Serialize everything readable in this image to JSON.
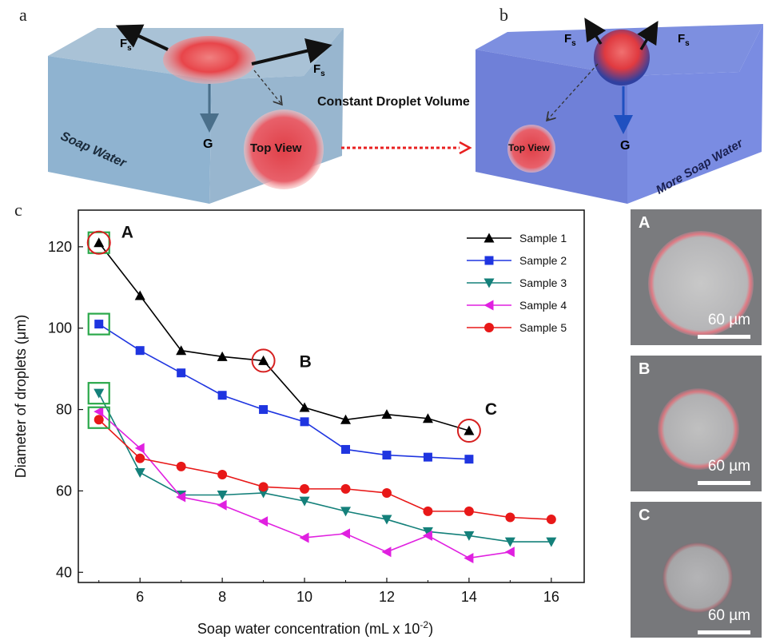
{
  "figure": {
    "panel_a": {
      "letter": "a",
      "force_label_1": "F",
      "force_sub_1": "s",
      "force_label_2": "F",
      "force_sub_2": "s",
      "gravity_label": "G",
      "liquid_label": "Soap Water",
      "top_view_label": "Top View"
    },
    "center_label": "Constant Droplet Volume",
    "panel_b": {
      "letter": "b",
      "force_label_1": "F",
      "force_sub_1": "s",
      "force_label_2": "F",
      "force_sub_2": "s",
      "gravity_label": "G",
      "liquid_label": "More Soap Water",
      "top_view_label": "Top View"
    },
    "panel_c_letter": "c",
    "micrographs": [
      {
        "label": "A",
        "scale_bar": "60 µm"
      },
      {
        "label": "B",
        "scale_bar": "60 µm"
      },
      {
        "label": "C",
        "scale_bar": "60 µm"
      }
    ],
    "colors": {
      "droplet_red": "#e8454a",
      "water_blue_a": "#8fb3d0",
      "water_blue_b": "#6f84dd",
      "highlight_green": "#2aa84a",
      "highlight_red": "#d62020"
    }
  },
  "chart_data": {
    "type": "line",
    "xlabel": "Soap water concentration (mL x 10",
    "xlabel_sup": "-2",
    "xlabel_end": ")",
    "ylabel": "Diameter of droplets (μm)",
    "xlim": [
      4.5,
      16.8
    ],
    "ylim": [
      37.5,
      129
    ],
    "xticks": [
      6,
      8,
      10,
      12,
      14,
      16
    ],
    "yticks": [
      40,
      60,
      80,
      100,
      120
    ],
    "legend_position": "top-right",
    "series": [
      {
        "name": "Sample 1",
        "color": "#000000",
        "marker": "triangle-up",
        "x": [
          5,
          6,
          7,
          8,
          9,
          10,
          11,
          12,
          13,
          14
        ],
        "y": [
          121,
          108,
          94.5,
          93,
          92,
          80.5,
          77.5,
          78.8,
          77.8,
          74.8
        ]
      },
      {
        "name": "Sample 2",
        "color": "#1f35e0",
        "marker": "square",
        "x": [
          5,
          6,
          7,
          8,
          9,
          10,
          11,
          12,
          13,
          14
        ],
        "y": [
          101,
          94.5,
          89,
          83.5,
          80,
          77,
          70.2,
          68.8,
          68.3,
          67.8
        ]
      },
      {
        "name": "Sample 3",
        "color": "#14807a",
        "marker": "triangle-down",
        "x": [
          5,
          6,
          7,
          8,
          9,
          10,
          11,
          12,
          13,
          14,
          15,
          16
        ],
        "y": [
          84,
          64.5,
          59,
          59,
          59.5,
          57.5,
          55,
          53,
          50,
          49,
          47.5,
          47.5
        ]
      },
      {
        "name": "Sample 4",
        "color": "#e020e0",
        "marker": "triangle-left",
        "x": [
          5,
          6,
          7,
          8,
          9,
          10,
          11,
          12,
          13,
          14,
          15
        ],
        "y": [
          79.5,
          70.5,
          58.5,
          56.5,
          52.5,
          48.5,
          49.5,
          45,
          49,
          43.5,
          45
        ]
      },
      {
        "name": "Sample 5",
        "color": "#e81818",
        "marker": "circle",
        "x": [
          5,
          6,
          7,
          8,
          9,
          10,
          11,
          12,
          13,
          14,
          15,
          16
        ],
        "y": [
          77.5,
          68,
          66,
          64,
          61,
          60.5,
          60.5,
          59.5,
          55,
          55,
          53.5,
          53
        ]
      }
    ],
    "annotations": [
      {
        "text": "A",
        "x": 5,
        "y": 121
      },
      {
        "text": "B",
        "x": 9,
        "y": 92
      },
      {
        "text": "C",
        "x": 14,
        "y": 74.8
      }
    ],
    "green_boxes": [
      {
        "x": 5,
        "y": 121
      },
      {
        "x": 5,
        "y": 101
      },
      {
        "x": 5,
        "y": 84
      },
      {
        "x": 5,
        "y": 78
      }
    ],
    "red_circles": [
      {
        "x": 5,
        "y": 121
      },
      {
        "x": 9,
        "y": 92
      },
      {
        "x": 14,
        "y": 74.8
      }
    ]
  }
}
